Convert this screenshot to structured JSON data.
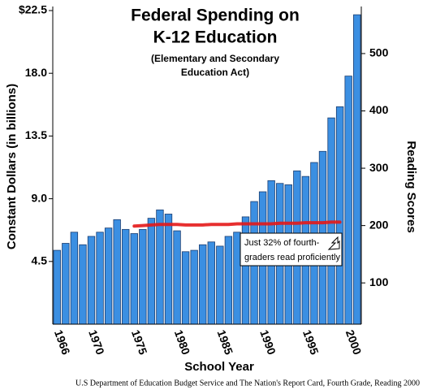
{
  "chart_data": {
    "type": "bar",
    "title": [
      "Federal Spending on",
      "K-12 Education"
    ],
    "subtitle": [
      "(Elementary and Secondary",
      "Education Act)"
    ],
    "x_label": "School Year",
    "y_label": "Constant Dollars (in billions)",
    "y2_label": "Reading Scores",
    "annotation": [
      "Just 32% of fourth-",
      "graders read proficiently"
    ],
    "source": "U.S Department of Education Budget Service and The Nation's Report Card, Fourth Grade, Reading 2000",
    "categories": [
      "1966",
      null,
      null,
      null,
      "1970",
      null,
      null,
      null,
      null,
      "1975",
      null,
      null,
      null,
      null,
      "1980",
      null,
      null,
      null,
      null,
      "1985",
      null,
      null,
      null,
      null,
      "1990",
      null,
      null,
      null,
      null,
      "1995",
      null,
      null,
      null,
      null,
      "2000",
      null
    ],
    "series": [
      {
        "color": "#3b8fe2",
        "values": [
          5.3,
          5.8,
          6.6,
          5.7,
          6.3,
          6.6,
          6.9,
          7.5,
          6.8,
          6.5,
          6.8,
          7.6,
          8.2,
          7.9,
          6.7,
          5.2,
          5.3,
          5.7,
          5.9,
          5.6,
          6.3,
          6.6,
          7.7,
          8.8,
          9.5,
          10.3,
          10.1,
          10.0,
          11.0,
          10.6,
          11.6,
          12.4,
          14.8,
          15.6,
          17.8,
          22.2
        ]
      },
      {
        "type": "line",
        "axis": "y2",
        "color": "#e41818",
        "values": [
          null,
          null,
          null,
          null,
          null,
          null,
          null,
          null,
          null,
          199,
          200,
          201,
          202,
          202,
          202,
          201,
          201,
          201,
          202,
          202,
          202,
          203,
          203,
          203,
          203,
          203,
          204,
          204,
          204,
          205,
          205,
          205,
          206,
          206,
          null,
          null
        ]
      }
    ],
    "ylim": [
      0,
      22.5
    ],
    "yticks": [
      4.5,
      {
        "value": 9,
        "label": "9.0"
      },
      13.5,
      {
        "value": 18,
        "label": "18.0"
      },
      {
        "value": 22.5,
        "label": "$22.5"
      }
    ],
    "y2lim": [
      28,
      575
    ],
    "y2ticks": [
      100,
      200,
      300,
      400,
      500
    ]
  }
}
